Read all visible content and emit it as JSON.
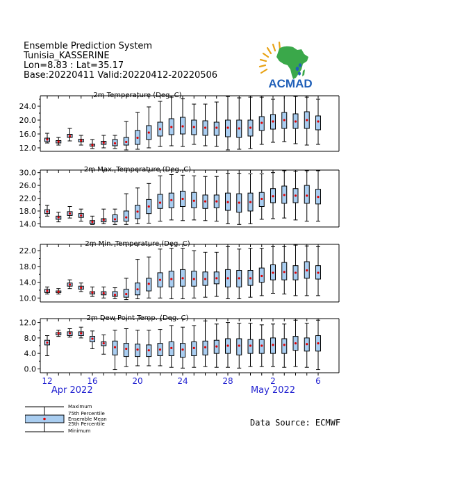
{
  "header": {
    "line1": "Ensemble Prediction System",
    "line2": "Tunisia_KASSERINE",
    "line3": "Lon=8.83 : Lat=35.17",
    "line4": "Base:20220411 Valid:20220412-20220506"
  },
  "logo": {
    "text": "ACMAD",
    "accent": "#1f5fb8",
    "continent": "#3aa84a",
    "sun": "#e8a317"
  },
  "legend": {
    "maximum": "Maximum",
    "p75": "75th Percentile",
    "mean": "Ensemble Mean",
    "p25": "25th Percentile",
    "minimum": "Minimum"
  },
  "source": "Data Source: ECMWF",
  "colors": {
    "box_fill": "#a9cdf0",
    "mean_marker": "#e00000",
    "axis_label": "#1f1fd0"
  },
  "chart_data": {
    "type": "boxplot",
    "x_tick_days": [
      "12",
      "16",
      "20",
      "24",
      "28",
      "2",
      "6"
    ],
    "x_tick_day_index": [
      0,
      4,
      8,
      12,
      16,
      20,
      24
    ],
    "month_labels": [
      {
        "label": "Apr 2022",
        "at_day_index": 2.2
      },
      {
        "label": "May 2022",
        "at_day_index": 20
      }
    ],
    "days": 25,
    "panels": [
      {
        "title": "2m Temperature (Deg. C)",
        "yticks": [
          "12.0",
          "16.0",
          "20.0",
          "24.0"
        ],
        "ytick_values": [
          12,
          16,
          20,
          24
        ],
        "ylim": [
          11,
          27
        ],
        "boxes": [
          {
            "min": 13.4,
            "q1": 13.8,
            "mean": 14.4,
            "q3": 14.8,
            "max": 16.2
          },
          {
            "min": 12.8,
            "q1": 13.4,
            "mean": 13.8,
            "q3": 14.1,
            "max": 15.0
          },
          {
            "min": 14.0,
            "q1": 15.0,
            "mean": 15.4,
            "q3": 15.9,
            "max": 17.6
          },
          {
            "min": 12.8,
            "q1": 13.7,
            "mean": 14.1,
            "q3": 14.5,
            "max": 15.6
          },
          {
            "min": 11.8,
            "q1": 12.5,
            "mean": 12.8,
            "q3": 13.1,
            "max": 14.4
          },
          {
            "min": 12.0,
            "q1": 13.0,
            "mean": 13.5,
            "q3": 13.9,
            "max": 15.6
          },
          {
            "min": 11.8,
            "q1": 12.6,
            "mean": 13.3,
            "q3": 14.4,
            "max": 15.6
          },
          {
            "min": 11.4,
            "q1": 12.8,
            "mean": 13.7,
            "q3": 15.0,
            "max": 19.6
          },
          {
            "min": 11.6,
            "q1": 13.0,
            "mean": 14.9,
            "q3": 17.0,
            "max": 22.2
          },
          {
            "min": 12.0,
            "q1": 14.4,
            "mean": 16.4,
            "q3": 18.4,
            "max": 23.8
          },
          {
            "min": 12.4,
            "q1": 15.4,
            "mean": 17.4,
            "q3": 19.4,
            "max": 25.4
          },
          {
            "min": 12.6,
            "q1": 15.8,
            "mean": 18.0,
            "q3": 20.4,
            "max": 26.6
          },
          {
            "min": 12.4,
            "q1": 16.0,
            "mean": 18.2,
            "q3": 20.8,
            "max": 26.2
          },
          {
            "min": 13.0,
            "q1": 15.8,
            "mean": 18.0,
            "q3": 20.0,
            "max": 24.6
          },
          {
            "min": 12.6,
            "q1": 15.6,
            "mean": 17.8,
            "q3": 19.8,
            "max": 24.6
          },
          {
            "min": 12.4,
            "q1": 15.6,
            "mean": 17.8,
            "q3": 19.4,
            "max": 25.2
          },
          {
            "min": 11.4,
            "q1": 15.2,
            "mean": 17.8,
            "q3": 20.0,
            "max": 26.8
          },
          {
            "min": 11.6,
            "q1": 15.0,
            "mean": 17.6,
            "q3": 20.0,
            "max": 26.4
          },
          {
            "min": 11.8,
            "q1": 15.4,
            "mean": 17.8,
            "q3": 20.0,
            "max": 26.6
          },
          {
            "min": 13.0,
            "q1": 17.0,
            "mean": 19.2,
            "q3": 21.0,
            "max": 26.6
          },
          {
            "min": 13.6,
            "q1": 17.4,
            "mean": 19.6,
            "q3": 21.6,
            "max": 26.0
          },
          {
            "min": 13.8,
            "q1": 17.6,
            "mean": 20.0,
            "q3": 22.2,
            "max": 27.0
          },
          {
            "min": 13.2,
            "q1": 17.6,
            "mean": 19.6,
            "q3": 21.8,
            "max": 26.8
          },
          {
            "min": 12.8,
            "q1": 17.6,
            "mean": 20.0,
            "q3": 22.4,
            "max": 26.6
          },
          {
            "min": 13.0,
            "q1": 17.2,
            "mean": 19.6,
            "q3": 21.2,
            "max": 26.0
          }
        ]
      },
      {
        "title": "2m Max. Temperature (Deg. C)",
        "yticks": [
          "14.0",
          "18.0",
          "22.0",
          "26.0",
          "30.0"
        ],
        "ytick_values": [
          14,
          18,
          22,
          26,
          30
        ],
        "ylim": [
          13,
          30.8
        ],
        "boxes": [
          {
            "min": 16.4,
            "q1": 17.2,
            "mean": 17.8,
            "q3": 18.4,
            "max": 19.8
          },
          {
            "min": 14.6,
            "q1": 15.4,
            "mean": 16.0,
            "q3": 16.4,
            "max": 17.6
          },
          {
            "min": 15.8,
            "q1": 16.6,
            "mean": 17.2,
            "q3": 17.8,
            "max": 19.4
          },
          {
            "min": 14.8,
            "q1": 16.0,
            "mean": 16.6,
            "q3": 17.2,
            "max": 18.6
          },
          {
            "min": 13.8,
            "q1": 14.0,
            "mean": 14.6,
            "q3": 15.0,
            "max": 16.4
          },
          {
            "min": 14.0,
            "q1": 14.6,
            "mean": 15.2,
            "q3": 15.6,
            "max": 18.6
          },
          {
            "min": 13.8,
            "q1": 14.6,
            "mean": 15.4,
            "q3": 16.8,
            "max": 18.6
          },
          {
            "min": 13.8,
            "q1": 14.8,
            "mean": 16.0,
            "q3": 18.0,
            "max": 23.4
          },
          {
            "min": 14.0,
            "q1": 15.6,
            "mean": 17.8,
            "q3": 19.8,
            "max": 25.2
          },
          {
            "min": 14.2,
            "q1": 17.2,
            "mean": 19.4,
            "q3": 21.6,
            "max": 26.6
          },
          {
            "min": 14.8,
            "q1": 18.8,
            "mean": 20.6,
            "q3": 23.2,
            "max": 29.0
          },
          {
            "min": 15.2,
            "q1": 19.0,
            "mean": 21.4,
            "q3": 23.6,
            "max": 29.4
          },
          {
            "min": 15.0,
            "q1": 19.4,
            "mean": 21.8,
            "q3": 24.2,
            "max": 29.2
          },
          {
            "min": 15.2,
            "q1": 19.0,
            "mean": 21.2,
            "q3": 23.8,
            "max": 29.0
          },
          {
            "min": 15.0,
            "q1": 18.8,
            "mean": 21.0,
            "q3": 23.0,
            "max": 28.8
          },
          {
            "min": 14.8,
            "q1": 19.0,
            "mean": 21.0,
            "q3": 23.0,
            "max": 28.8
          },
          {
            "min": 14.0,
            "q1": 18.2,
            "mean": 20.8,
            "q3": 23.6,
            "max": 29.8
          },
          {
            "min": 13.8,
            "q1": 17.6,
            "mean": 20.6,
            "q3": 23.4,
            "max": 29.8
          },
          {
            "min": 14.0,
            "q1": 18.0,
            "mean": 20.8,
            "q3": 23.6,
            "max": 29.6
          },
          {
            "min": 15.4,
            "q1": 19.4,
            "mean": 21.8,
            "q3": 23.8,
            "max": 29.6
          },
          {
            "min": 15.6,
            "q1": 20.6,
            "mean": 22.6,
            "q3": 25.0,
            "max": 30.0
          },
          {
            "min": 15.8,
            "q1": 20.4,
            "mean": 23.0,
            "q3": 25.8,
            "max": 30.6
          },
          {
            "min": 15.2,
            "q1": 20.6,
            "mean": 22.8,
            "q3": 25.0,
            "max": 30.4
          },
          {
            "min": 14.8,
            "q1": 20.4,
            "mean": 22.8,
            "q3": 26.0,
            "max": 30.6
          },
          {
            "min": 14.8,
            "q1": 20.2,
            "mean": 22.4,
            "q3": 24.8,
            "max": 30.6
          }
        ]
      },
      {
        "title": "2m Min. Temperature (Deg. C)",
        "yticks": [
          "10.0",
          "14.0",
          "18.0",
          "22.0"
        ],
        "ytick_values": [
          10,
          14,
          18,
          22
        ],
        "ylim": [
          9,
          23.6
        ],
        "boxes": [
          {
            "min": 11.0,
            "q1": 11.4,
            "mean": 11.8,
            "q3": 12.2,
            "max": 12.8
          },
          {
            "min": 11.0,
            "q1": 11.4,
            "mean": 11.6,
            "q3": 11.8,
            "max": 12.4
          },
          {
            "min": 12.4,
            "q1": 13.0,
            "mean": 13.4,
            "q3": 13.8,
            "max": 14.6
          },
          {
            "min": 11.6,
            "q1": 12.2,
            "mean": 12.6,
            "q3": 13.0,
            "max": 13.8
          },
          {
            "min": 10.4,
            "q1": 11.0,
            "mean": 11.4,
            "q3": 11.6,
            "max": 12.8
          },
          {
            "min": 10.0,
            "q1": 10.8,
            "mean": 11.2,
            "q3": 11.6,
            "max": 12.8
          },
          {
            "min": 9.8,
            "q1": 10.4,
            "mean": 10.8,
            "q3": 11.6,
            "max": 12.6
          },
          {
            "min": 9.6,
            "q1": 10.2,
            "mean": 11.0,
            "q3": 12.2,
            "max": 15.0
          },
          {
            "min": 9.8,
            "q1": 10.8,
            "mean": 12.2,
            "q3": 13.8,
            "max": 19.8
          },
          {
            "min": 10.0,
            "q1": 11.8,
            "mean": 13.6,
            "q3": 15.0,
            "max": 20.4
          },
          {
            "min": 10.0,
            "q1": 12.8,
            "mean": 14.6,
            "q3": 16.4,
            "max": 22.4
          },
          {
            "min": 9.8,
            "q1": 12.8,
            "mean": 14.8,
            "q3": 16.8,
            "max": 22.6
          },
          {
            "min": 9.8,
            "q1": 13.0,
            "mean": 15.0,
            "q3": 17.2,
            "max": 22.6
          },
          {
            "min": 10.0,
            "q1": 13.0,
            "mean": 14.8,
            "q3": 16.8,
            "max": 22.0
          },
          {
            "min": 10.2,
            "q1": 13.2,
            "mean": 14.8,
            "q3": 16.6,
            "max": 21.6
          },
          {
            "min": 10.4,
            "q1": 13.6,
            "mean": 15.0,
            "q3": 16.6,
            "max": 21.6
          },
          {
            "min": 9.8,
            "q1": 12.8,
            "mean": 15.0,
            "q3": 17.2,
            "max": 23.0
          },
          {
            "min": 9.8,
            "q1": 12.8,
            "mean": 15.0,
            "q3": 17.0,
            "max": 22.4
          },
          {
            "min": 10.2,
            "q1": 13.2,
            "mean": 15.0,
            "q3": 17.0,
            "max": 22.6
          },
          {
            "min": 10.6,
            "q1": 14.0,
            "mean": 15.6,
            "q3": 17.6,
            "max": 22.6
          },
          {
            "min": 11.2,
            "q1": 14.6,
            "mean": 16.4,
            "q3": 18.4,
            "max": 23.0
          },
          {
            "min": 11.0,
            "q1": 14.6,
            "mean": 16.6,
            "q3": 19.0,
            "max": 23.0
          },
          {
            "min": 10.6,
            "q1": 14.6,
            "mean": 16.4,
            "q3": 18.2,
            "max": 23.4
          },
          {
            "min": 10.6,
            "q1": 15.0,
            "mean": 17.0,
            "q3": 19.2,
            "max": 23.2
          },
          {
            "min": 10.6,
            "q1": 14.8,
            "mean": 16.4,
            "q3": 18.2,
            "max": 23.0
          }
        ]
      },
      {
        "title": "2m Dew Point Temp. (Deg. C)",
        "yticks": [
          "0.0",
          "4.0",
          "8.0",
          "12.0"
        ],
        "ytick_values": [
          0,
          4,
          8,
          12
        ],
        "ylim": [
          -1,
          13
        ],
        "boxes": [
          {
            "min": 3.4,
            "q1": 6.2,
            "mean": 6.8,
            "q3": 7.4,
            "max": 8.6
          },
          {
            "min": 8.4,
            "q1": 8.8,
            "mean": 9.2,
            "q3": 9.4,
            "max": 10.0
          },
          {
            "min": 8.2,
            "q1": 8.6,
            "mean": 9.2,
            "q3": 9.6,
            "max": 10.4
          },
          {
            "min": 8.0,
            "q1": 8.6,
            "mean": 9.2,
            "q3": 9.6,
            "max": 10.8
          },
          {
            "min": 5.2,
            "q1": 7.0,
            "mean": 7.8,
            "q3": 8.4,
            "max": 9.8
          },
          {
            "min": 3.8,
            "q1": 6.0,
            "mean": 6.6,
            "q3": 7.0,
            "max": 8.8
          },
          {
            "min": -0.2,
            "q1": 3.6,
            "mean": 5.6,
            "q3": 7.2,
            "max": 10.0
          },
          {
            "min": 0.6,
            "q1": 3.2,
            "mean": 5.2,
            "q3": 6.6,
            "max": 10.4
          },
          {
            "min": 0.8,
            "q1": 3.2,
            "mean": 5.0,
            "q3": 6.4,
            "max": 10.0
          },
          {
            "min": 0.8,
            "q1": 3.2,
            "mean": 4.8,
            "q3": 6.2,
            "max": 10.0
          },
          {
            "min": 0.8,
            "q1": 3.4,
            "mean": 5.0,
            "q3": 6.6,
            "max": 10.2
          },
          {
            "min": 0.4,
            "q1": 3.4,
            "mean": 5.4,
            "q3": 7.0,
            "max": 11.2
          },
          {
            "min": 0.2,
            "q1": 3.0,
            "mean": 5.0,
            "q3": 6.6,
            "max": 10.8
          },
          {
            "min": 0.4,
            "q1": 3.4,
            "mean": 5.4,
            "q3": 7.0,
            "max": 11.2
          },
          {
            "min": 0.6,
            "q1": 3.6,
            "mean": 5.6,
            "q3": 7.2,
            "max": 12.4
          },
          {
            "min": 0.4,
            "q1": 4.0,
            "mean": 5.8,
            "q3": 7.4,
            "max": 11.6
          },
          {
            "min": 0.4,
            "q1": 4.0,
            "mean": 6.0,
            "q3": 7.8,
            "max": 12.0
          },
          {
            "min": 0.2,
            "q1": 3.6,
            "mean": 6.0,
            "q3": 7.8,
            "max": 11.8
          },
          {
            "min": 0.6,
            "q1": 4.0,
            "mean": 6.0,
            "q3": 7.6,
            "max": 11.8
          },
          {
            "min": 0.6,
            "q1": 4.0,
            "mean": 6.0,
            "q3": 7.6,
            "max": 11.4
          },
          {
            "min": 0.6,
            "q1": 4.0,
            "mean": 6.2,
            "q3": 8.0,
            "max": 11.6
          },
          {
            "min": 0.4,
            "q1": 4.0,
            "mean": 6.2,
            "q3": 7.8,
            "max": 11.6
          },
          {
            "min": 0.6,
            "q1": 4.8,
            "mean": 6.6,
            "q3": 8.4,
            "max": 12.6
          },
          {
            "min": 0.4,
            "q1": 4.6,
            "mean": 6.4,
            "q3": 8.0,
            "max": 11.8
          },
          {
            "min": -0.2,
            "q1": 4.6,
            "mean": 6.6,
            "q3": 8.6,
            "max": 12.6
          }
        ]
      }
    ]
  }
}
